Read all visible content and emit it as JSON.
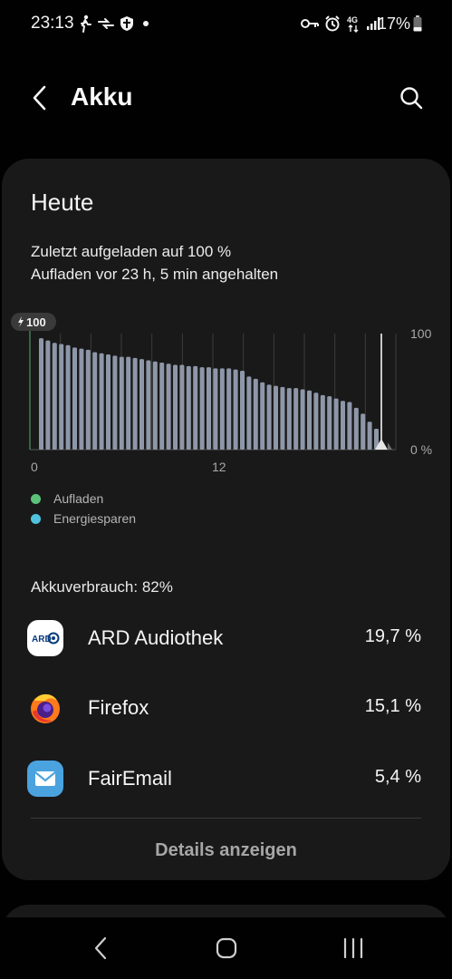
{
  "status_bar": {
    "time": "23:13",
    "network": "4G",
    "battery_text": "17%",
    "left_icons": [
      "walking-icon",
      "data-transfer-icon",
      "shield-icon",
      "notification-dot-icon"
    ],
    "right_icons": [
      "key-icon",
      "alarm-icon",
      "network-4g-icon",
      "signal-icon",
      "battery-icon"
    ]
  },
  "app_bar": {
    "title": "Akku"
  },
  "card": {
    "heading": "Heute",
    "line1": "Zuletzt aufgeladen auf 100 %",
    "line2": "Aufladen vor 23 h, 5 min angehalten",
    "legend": [
      {
        "label": "Aufladen",
        "color": "#5cc27a"
      },
      {
        "label": "Energiesparen",
        "color": "#4fc3de"
      }
    ],
    "usage_text": "Akkuverbrauch: 82%",
    "apps": [
      {
        "name": "ARD Audiothek",
        "percent": "19,7 %",
        "icon": "ard-audiothek-icon",
        "icon_text": "ARD"
      },
      {
        "name": "Firefox",
        "percent": "15,1 %",
        "icon": "firefox-icon"
      },
      {
        "name": "FairEmail",
        "percent": "5,4 %",
        "icon": "fairemail-icon"
      }
    ],
    "details_label": "Details anzeigen"
  },
  "chart_data": {
    "type": "bar",
    "badge_label": "100",
    "x_tick_labels": [
      "0",
      "12"
    ],
    "y_tick_labels": [
      "100",
      "0 %"
    ],
    "ylim": [
      0,
      100
    ],
    "bar_color": "#8e97a8",
    "values": [
      96,
      94,
      92,
      91,
      90,
      88,
      87,
      86,
      84,
      83,
      82,
      81,
      80,
      80,
      79,
      78,
      77,
      76,
      75,
      74,
      73,
      73,
      72,
      72,
      71,
      71,
      70,
      70,
      70,
      69,
      68,
      63,
      61,
      58,
      56,
      55,
      54,
      53,
      53,
      52,
      51,
      49,
      47,
      46,
      44,
      42,
      41,
      36,
      31,
      24,
      18
    ]
  }
}
